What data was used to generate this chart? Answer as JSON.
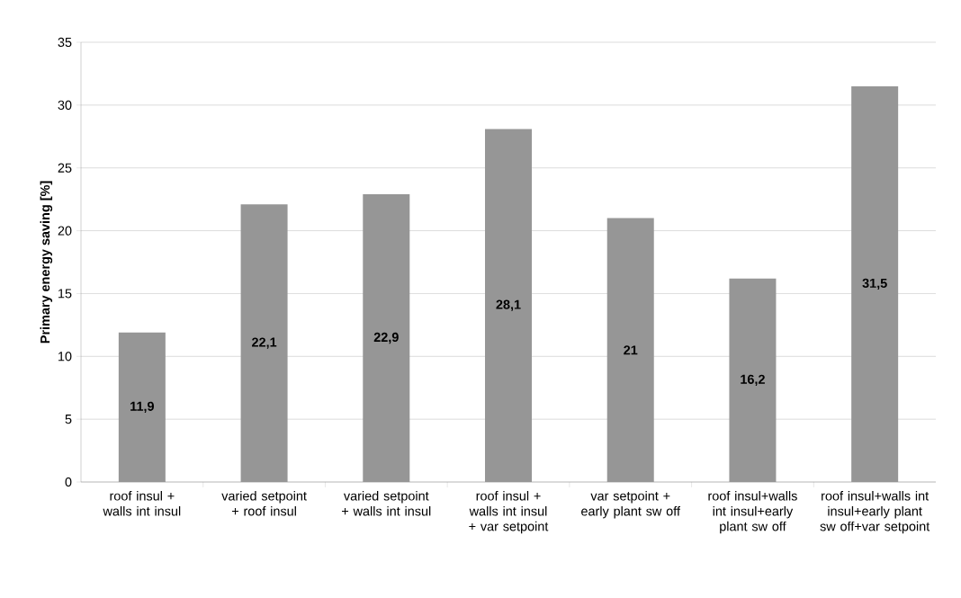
{
  "chart_data": {
    "type": "bar",
    "ylabel": "Primary energy saving [%]",
    "categories": [
      "roof insul + walls int insul",
      "varied setpoint + roof insul",
      "varied setpoint + walls int insul",
      "roof insul + walls int insul + var setpoint",
      "var setpoint + early plant sw off",
      "roof insul+walls int insul+early plant sw off",
      "roof insul+walls int insul+early plant sw off+var setpoint"
    ],
    "values": [
      11.9,
      22.1,
      22.9,
      28.1,
      21,
      16.2,
      31.5
    ],
    "value_labels": [
      "11,9",
      "22,1",
      "22,9",
      "28,1",
      "21",
      "16,2",
      "31,5"
    ],
    "color": "#969696",
    "ylim": [
      0,
      35
    ],
    "yticks": [
      0,
      5,
      10,
      15,
      20,
      25,
      30,
      35
    ],
    "grid": "y"
  }
}
